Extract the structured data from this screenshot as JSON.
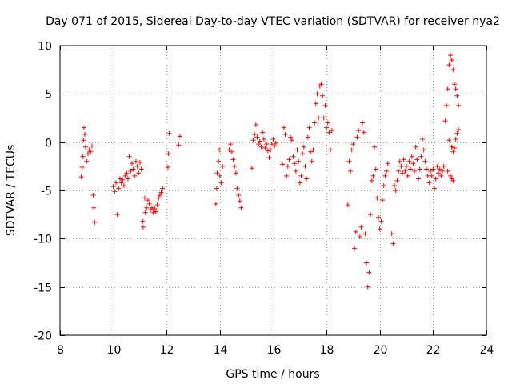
{
  "chart_data": {
    "type": "scatter",
    "title": "Day 071 of 2015, Sidereal Day-to-day VTEC variation (SDTVAR) for receiver nya2",
    "xlabel": "GPS time / hours",
    "ylabel": "SDTVAR / TECUs",
    "xlim": [
      8,
      24
    ],
    "ylim": [
      -20,
      10
    ],
    "xticks": [
      8,
      10,
      12,
      14,
      16,
      18,
      20,
      22,
      24
    ],
    "yticks": [
      -20,
      -15,
      -10,
      -5,
      0,
      5,
      10
    ],
    "grid": true,
    "marker": "+",
    "series": [
      {
        "name": "SDTVAR",
        "color": "#ff0000",
        "points": [
          [
            8.8,
            -3.6
          ],
          [
            8.83,
            -2.6
          ],
          [
            8.86,
            -1.5
          ],
          [
            8.88,
            0.2
          ],
          [
            8.9,
            1.5
          ],
          [
            8.93,
            0.8
          ],
          [
            8.96,
            -0.5
          ],
          [
            9.0,
            -2.0
          ],
          [
            9.05,
            -1.2
          ],
          [
            9.1,
            -0.8
          ],
          [
            9.15,
            -1.0
          ],
          [
            9.2,
            -0.4
          ],
          [
            9.25,
            -5.5
          ],
          [
            9.27,
            -6.8
          ],
          [
            9.3,
            -8.3
          ],
          [
            10.0,
            -4.6
          ],
          [
            10.05,
            -5.1
          ],
          [
            10.1,
            -4.2
          ],
          [
            10.15,
            -7.5
          ],
          [
            10.2,
            -4.8
          ],
          [
            10.25,
            -3.8
          ],
          [
            10.3,
            -4.2
          ],
          [
            10.35,
            -3.9
          ],
          [
            10.4,
            -4.5
          ],
          [
            10.45,
            -3.5
          ],
          [
            10.5,
            -3.2
          ],
          [
            10.55,
            -3.8
          ],
          [
            10.6,
            -1.5
          ],
          [
            10.65,
            -3.0
          ],
          [
            10.7,
            -2.2
          ],
          [
            10.75,
            -2.8
          ],
          [
            10.8,
            -3.5
          ],
          [
            10.85,
            -2.0
          ],
          [
            10.9,
            -2.5
          ],
          [
            10.95,
            -3.2
          ],
          [
            11.0,
            -2.1
          ],
          [
            11.05,
            -2.8
          ],
          [
            11.1,
            -8.2
          ],
          [
            11.12,
            -8.8
          ],
          [
            11.18,
            -5.8
          ],
          [
            11.2,
            -7.3
          ],
          [
            11.25,
            -6.8
          ],
          [
            11.3,
            -6.0
          ],
          [
            11.35,
            -6.4
          ],
          [
            11.4,
            -7.0
          ],
          [
            11.45,
            -6.8
          ],
          [
            11.5,
            -7.3
          ],
          [
            11.55,
            -6.9
          ],
          [
            11.6,
            -7.2
          ],
          [
            11.65,
            -6.5
          ],
          [
            11.7,
            -5.8
          ],
          [
            11.75,
            -5.5
          ],
          [
            11.8,
            -5.2
          ],
          [
            11.85,
            -4.8
          ],
          [
            12.05,
            -2.6
          ],
          [
            12.07,
            -1.2
          ],
          [
            12.1,
            0.9
          ],
          [
            12.45,
            -0.3
          ],
          [
            12.5,
            0.6
          ],
          [
            13.85,
            -6.4
          ],
          [
            13.88,
            -4.8
          ],
          [
            13.9,
            -3.2
          ],
          [
            13.95,
            -2.0
          ],
          [
            13.98,
            -0.8
          ],
          [
            14.0,
            -3.5
          ],
          [
            14.05,
            -4.2
          ],
          [
            14.1,
            -2.5
          ],
          [
            14.35,
            -0.8
          ],
          [
            14.4,
            -0.2
          ],
          [
            14.45,
            -1.0
          ],
          [
            14.5,
            -1.8
          ],
          [
            14.55,
            -2.5
          ],
          [
            14.6,
            -3.2
          ],
          [
            14.65,
            -4.8
          ],
          [
            14.7,
            -5.5
          ],
          [
            14.75,
            -6.1
          ],
          [
            14.8,
            -6.8
          ],
          [
            15.2,
            -2.7
          ],
          [
            15.25,
            0.2
          ],
          [
            15.3,
            0.8
          ],
          [
            15.35,
            1.8
          ],
          [
            15.4,
            0.5
          ],
          [
            15.45,
            -0.2
          ],
          [
            15.5,
            0.1
          ],
          [
            15.55,
            -0.5
          ],
          [
            15.6,
            1.0
          ],
          [
            15.65,
            0.3
          ],
          [
            15.7,
            -0.6
          ],
          [
            15.75,
            -0.2
          ],
          [
            15.8,
            -0.9
          ],
          [
            15.85,
            -1.6
          ],
          [
            15.9,
            -0.8
          ],
          [
            15.95,
            -0.2
          ],
          [
            16.0,
            0.3
          ],
          [
            16.05,
            -0.4
          ],
          [
            16.1,
            -0.1
          ],
          [
            16.35,
            -2.3
          ],
          [
            16.4,
            1.5
          ],
          [
            16.45,
            0.8
          ],
          [
            16.5,
            -3.5
          ],
          [
            16.55,
            -2.5
          ],
          [
            16.6,
            -1.8
          ],
          [
            16.65,
            0.5
          ],
          [
            16.7,
            0.2
          ],
          [
            16.75,
            -1.5
          ],
          [
            16.8,
            -2.2
          ],
          [
            16.85,
            -3.0
          ],
          [
            16.9,
            -0.8
          ],
          [
            16.95,
            -2.0
          ],
          [
            17.0,
            -4.2
          ],
          [
            17.05,
            -3.5
          ],
          [
            17.1,
            -1.2
          ],
          [
            17.15,
            -0.5
          ],
          [
            17.2,
            -2.5
          ],
          [
            17.25,
            -3.8
          ],
          [
            17.3,
            0.5
          ],
          [
            17.35,
            1.5
          ],
          [
            17.4,
            -1.0
          ],
          [
            17.45,
            -2.0
          ],
          [
            17.5,
            -0.8
          ],
          [
            17.55,
            2.0
          ],
          [
            17.6,
            4.0
          ],
          [
            17.65,
            5.0
          ],
          [
            17.7,
            2.5
          ],
          [
            17.75,
            5.8
          ],
          [
            17.8,
            6.0
          ],
          [
            17.85,
            4.8
          ],
          [
            17.9,
            2.5
          ],
          [
            17.95,
            3.8
          ],
          [
            18.0,
            1.5
          ],
          [
            18.05,
            2.0
          ],
          [
            18.1,
            1.0
          ],
          [
            18.15,
            -0.8
          ],
          [
            18.2,
            1.2
          ],
          [
            18.8,
            -6.5
          ],
          [
            18.85,
            -2.0
          ],
          [
            18.9,
            -3.0
          ],
          [
            18.95,
            -0.8
          ],
          [
            19.0,
            -0.2
          ],
          [
            19.05,
            -11.0
          ],
          [
            19.1,
            -9.3
          ],
          [
            19.15,
            0.5
          ],
          [
            19.2,
            1.2
          ],
          [
            19.25,
            -9.8
          ],
          [
            19.3,
            -8.8
          ],
          [
            19.35,
            2.0
          ],
          [
            19.4,
            1.0
          ],
          [
            19.45,
            -9.5
          ],
          [
            19.5,
            -12.5
          ],
          [
            19.55,
            -15.0
          ],
          [
            19.6,
            -13.5
          ],
          [
            19.65,
            -7.5
          ],
          [
            19.7,
            -4.0
          ],
          [
            19.75,
            -3.5
          ],
          [
            19.8,
            -0.5
          ],
          [
            19.85,
            -2.8
          ],
          [
            19.9,
            -5.8
          ],
          [
            19.95,
            -7.8
          ],
          [
            20.0,
            -9.0
          ],
          [
            20.05,
            -8.2
          ],
          [
            20.1,
            -6.0
          ],
          [
            20.15,
            -4.5
          ],
          [
            20.2,
            -3.5
          ],
          [
            20.25,
            -3.0
          ],
          [
            20.3,
            -2.2
          ],
          [
            20.45,
            -9.5
          ],
          [
            20.5,
            -10.5
          ],
          [
            20.55,
            -4.5
          ],
          [
            20.6,
            -5.0
          ],
          [
            20.65,
            -4.0
          ],
          [
            20.7,
            -3.0
          ],
          [
            20.75,
            -2.0
          ],
          [
            20.8,
            -2.5
          ],
          [
            20.85,
            -3.2
          ],
          [
            20.9,
            -1.8
          ],
          [
            20.95,
            -3.0
          ],
          [
            21.0,
            -2.5
          ],
          [
            21.05,
            -3.5
          ],
          [
            21.1,
            -2.0
          ],
          [
            21.15,
            -2.8
          ],
          [
            21.2,
            -1.5
          ],
          [
            21.25,
            -2.2
          ],
          [
            21.3,
            -3.0
          ],
          [
            21.35,
            -0.5
          ],
          [
            21.4,
            -1.8
          ],
          [
            21.45,
            -3.8
          ],
          [
            21.5,
            -2.8
          ],
          [
            21.55,
            -1.5
          ],
          [
            21.6,
            0.3
          ],
          [
            21.65,
            -0.8
          ],
          [
            21.7,
            -2.0
          ],
          [
            21.75,
            -2.8
          ],
          [
            21.8,
            -3.5
          ],
          [
            21.85,
            -4.2
          ],
          [
            21.9,
            -3.0
          ],
          [
            21.95,
            -3.5
          ],
          [
            22.0,
            -2.8
          ],
          [
            22.05,
            -4.8
          ],
          [
            22.1,
            -3.8
          ],
          [
            22.15,
            -2.5
          ],
          [
            22.2,
            -3.2
          ],
          [
            22.25,
            -2.8
          ],
          [
            22.3,
            -3.5
          ],
          [
            22.35,
            -3.0
          ],
          [
            22.4,
            -2.5
          ],
          [
            22.45,
            2.2
          ],
          [
            22.5,
            3.8
          ],
          [
            22.55,
            5.5
          ],
          [
            22.6,
            8.0
          ],
          [
            22.65,
            9.0
          ],
          [
            22.7,
            8.5
          ],
          [
            22.75,
            7.5
          ],
          [
            22.8,
            6.0
          ],
          [
            22.85,
            5.5
          ],
          [
            22.9,
            4.8
          ],
          [
            22.95,
            3.8
          ],
          [
            22.6,
            0.2
          ],
          [
            22.7,
            -0.5
          ],
          [
            22.75,
            -1.0
          ],
          [
            22.8,
            -0.6
          ],
          [
            22.85,
            0.3
          ],
          [
            22.9,
            0.9
          ],
          [
            22.95,
            1.3
          ],
          [
            22.55,
            -3.0
          ],
          [
            22.65,
            -3.5
          ],
          [
            22.7,
            -3.8
          ],
          [
            22.75,
            -4.0
          ]
        ]
      }
    ]
  }
}
